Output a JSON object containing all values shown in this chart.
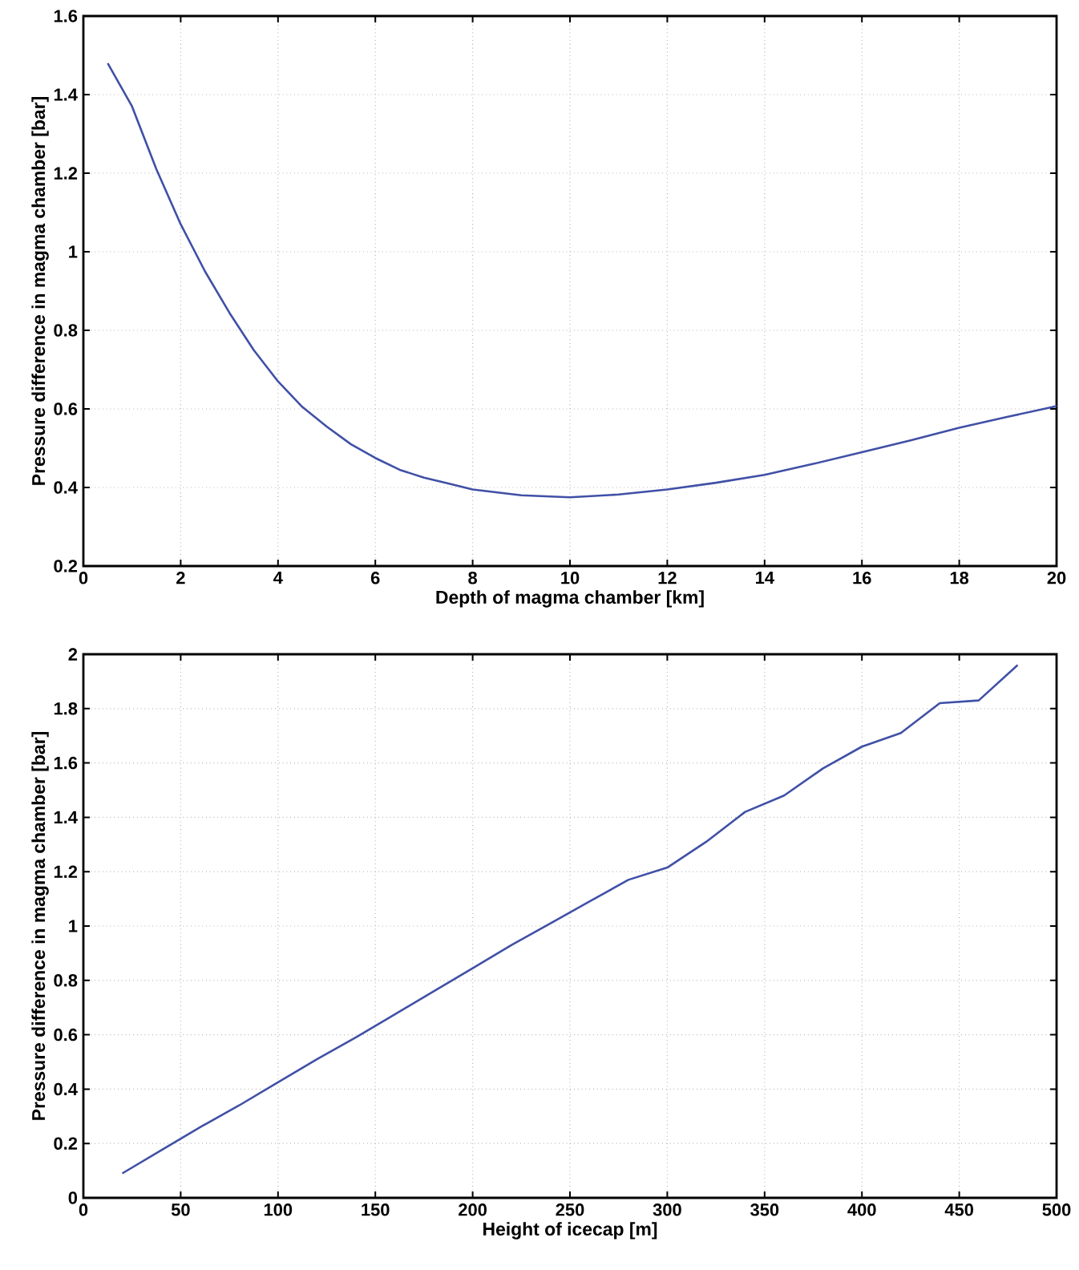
{
  "chart_data": [
    {
      "type": "line",
      "xlabel": "Depth of magma chamber [km]",
      "ylabel": "Pressure difference in magma chamber [bar]",
      "x": [
        0.5,
        1,
        1.5,
        2,
        2.5,
        3,
        3.5,
        4,
        4.5,
        5,
        5.5,
        6,
        6.5,
        7,
        7.5,
        8,
        9,
        10,
        11,
        12,
        13,
        14,
        15,
        16,
        17,
        18,
        19,
        20
      ],
      "values": [
        1.48,
        1.37,
        1.21,
        1.07,
        0.95,
        0.845,
        0.75,
        0.67,
        0.605,
        0.555,
        0.51,
        0.475,
        0.445,
        0.425,
        0.41,
        0.395,
        0.38,
        0.375,
        0.382,
        0.395,
        0.412,
        0.432,
        0.46,
        0.49,
        0.52,
        0.552,
        0.58,
        0.607
      ],
      "color": "#4050a6",
      "xlim": [
        0,
        20
      ],
      "ylim": [
        0.2,
        1.6
      ],
      "xticks": [
        0,
        2,
        4,
        6,
        8,
        10,
        12,
        14,
        16,
        18,
        20
      ],
      "yticks": [
        0.2,
        0.4,
        0.6,
        0.8,
        1,
        1.2,
        1.4,
        1.6
      ],
      "grid": true
    },
    {
      "type": "line",
      "xlabel": "Height of icecap [m]",
      "ylabel": "Pressure difference in magma chamber [bar]",
      "x": [
        20,
        40,
        60,
        80,
        100,
        120,
        140,
        160,
        180,
        200,
        220,
        240,
        260,
        280,
        300,
        320,
        340,
        360,
        380,
        400,
        420,
        440,
        460,
        480
      ],
      "values": [
        0.09,
        0.175,
        0.26,
        0.34,
        0.425,
        0.51,
        0.59,
        0.675,
        0.76,
        0.845,
        0.93,
        1.01,
        1.09,
        1.17,
        1.215,
        1.31,
        1.42,
        1.48,
        1.58,
        1.66,
        1.71,
        1.82,
        1.83,
        1.96
      ],
      "color": "#4050a6",
      "xlim": [
        0,
        500
      ],
      "ylim": [
        0,
        2
      ],
      "xticks": [
        0,
        50,
        100,
        150,
        200,
        250,
        300,
        350,
        400,
        450,
        500
      ],
      "yticks": [
        0,
        0.2,
        0.4,
        0.6,
        0.8,
        1,
        1.2,
        1.4,
        1.6,
        1.8,
        2
      ],
      "grid": true
    }
  ]
}
